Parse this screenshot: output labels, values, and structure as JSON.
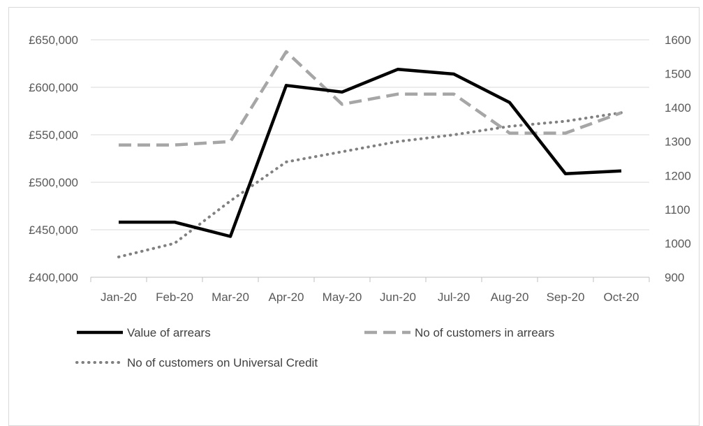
{
  "chart_data": {
    "type": "line",
    "title": "",
    "categories": [
      "Jan-20",
      "Feb-20",
      "Mar-20",
      "Apr-20",
      "May-20",
      "Jun-20",
      "Jul-20",
      "Aug-20",
      "Sep-20",
      "Oct-20"
    ],
    "y_left": {
      "min": 400000,
      "max": 650000,
      "ticks": [
        400000,
        450000,
        500000,
        550000,
        600000,
        650000
      ],
      "tick_labels": [
        "£400,000",
        "£450,000",
        "£500,000",
        "£550,000",
        "£600,000",
        "£650,000"
      ]
    },
    "y_right": {
      "min": 900,
      "max": 1600,
      "ticks": [
        900,
        1000,
        1100,
        1200,
        1300,
        1400,
        1500,
        1600
      ],
      "tick_labels": [
        "900",
        "1000",
        "1100",
        "1200",
        "1300",
        "1400",
        "1500",
        "1600"
      ]
    },
    "grid": true,
    "legend_position": "bottom",
    "series": [
      {
        "name": "Value of arrears",
        "axis": "left",
        "style": "solid",
        "color": "#000000",
        "values": [
          458000,
          458000,
          443000,
          602000,
          595000,
          619000,
          614000,
          584000,
          509000,
          512000
        ]
      },
      {
        "name": "No of customers in arrears",
        "axis": "right",
        "style": "dashed",
        "color": "#a6a6a6",
        "values": [
          1290,
          1290,
          1300,
          1565,
          1410,
          1440,
          1440,
          1325,
          1325,
          1385
        ]
      },
      {
        "name": "No of customers on Universal Credit",
        "axis": "right",
        "style": "dotted",
        "color": "#808080",
        "values": [
          960,
          1000,
          1125,
          1240,
          1270,
          1300,
          1320,
          1345,
          1360,
          1385
        ]
      }
    ]
  }
}
